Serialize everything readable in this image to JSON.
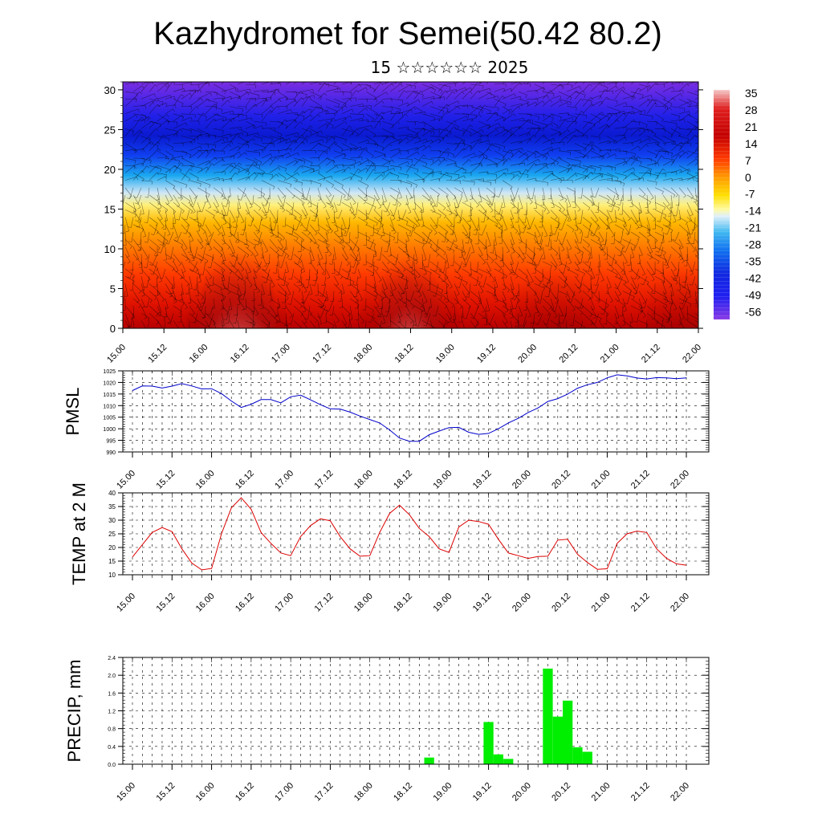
{
  "header": {
    "title": "Kazhydromet for Semei(50.42 80.2)",
    "subtitle": "15 ☆☆☆☆☆☆ 2025"
  },
  "colors": {
    "pmsl_line": "#0000cc",
    "temp_line": "#dd0000",
    "precip_bar": "#00ee00"
  },
  "chart_data": [
    {
      "id": "cross-section",
      "type": "heatmap",
      "title": "",
      "xlabel": "",
      "ylabel": "",
      "x_ticks": [
        "15.00",
        "15.12",
        "16.00",
        "16.12",
        "17.00",
        "17.12",
        "18.00",
        "18.12",
        "19.00",
        "19.12",
        "20.00",
        "20.12",
        "21.00",
        "21.12",
        "22.00"
      ],
      "y_ticks": [
        0,
        5,
        10,
        15,
        20,
        25,
        30
      ],
      "ylim": [
        0,
        31
      ],
      "colorbar_ticks": [
        35,
        28,
        21,
        14,
        7,
        0,
        -7,
        -14,
        -21,
        -28,
        -35,
        -42,
        -49,
        -56
      ],
      "colorbar_range": [
        -63,
        42
      ],
      "overlay": "wind barbs"
    },
    {
      "id": "pmsl",
      "type": "line",
      "ylabel": "PMSL",
      "x_ticks": [
        "15.00",
        "15.12",
        "16.00",
        "16.12",
        "17.00",
        "17.12",
        "18.00",
        "18.12",
        "19.00",
        "19.12",
        "20.00",
        "20.12",
        "21.00",
        "21.12",
        "22.00"
      ],
      "y_ticks": [
        990,
        995,
        1000,
        1005,
        1010,
        1015,
        1020,
        1025
      ],
      "ylim": [
        990,
        1025
      ],
      "step_hours": 3,
      "values": [
        1016.5,
        1018.5,
        1018.4,
        1017.6,
        1018.4,
        1019.5,
        1018.5,
        1017.2,
        1017.3,
        1015.2,
        1012.0,
        1009.2,
        1010.6,
        1012.6,
        1012.6,
        1011.2,
        1013.8,
        1014.5,
        1012.5,
        1010.4,
        1008.6,
        1008.5,
        1007.2,
        1005.5,
        1004.0,
        1002.5,
        999.5,
        996.0,
        994.6,
        994.6,
        997.4,
        999.0,
        1000.5,
        1000.6,
        998.5,
        997.6,
        998.0,
        1000.0,
        1002.5,
        1004.5,
        1007.0,
        1009.0,
        1011.8,
        1013.0,
        1015.0,
        1017.5,
        1019.0,
        1020.0,
        1022.0,
        1023.3,
        1022.8,
        1021.9,
        1021.5,
        1022.1,
        1022.0,
        1021.6,
        1022.0
      ]
    },
    {
      "id": "temp2m",
      "type": "line",
      "ylabel": "TEMP at 2 M",
      "x_ticks": [
        "15.00",
        "15.12",
        "16.00",
        "16.12",
        "17.00",
        "17.12",
        "18.00",
        "18.12",
        "19.00",
        "19.12",
        "20.00",
        "20.12",
        "21.00",
        "21.12",
        "22.00"
      ],
      "y_ticks": [
        10,
        15,
        20,
        25,
        30,
        35,
        40
      ],
      "ylim": [
        10,
        40
      ],
      "step_hours": 3,
      "values": [
        16.5,
        21.0,
        25.5,
        27.3,
        25.8,
        19.5,
        14.3,
        11.8,
        12.3,
        25.0,
        34.5,
        38.2,
        34.0,
        25.5,
        21.5,
        18.0,
        17.0,
        24.0,
        28.0,
        30.5,
        29.8,
        24.0,
        19.5,
        16.8,
        17.0,
        25.5,
        32.5,
        35.5,
        32.0,
        27.0,
        24.0,
        19.5,
        18.2,
        27.5,
        30.0,
        29.5,
        28.5,
        23.0,
        18.0,
        17.0,
        16.0,
        16.7,
        16.8,
        22.7,
        23.0,
        17.5,
        14.5,
        12.0,
        12.2,
        21.5,
        25.0,
        26.0,
        25.5,
        19.5,
        16.0,
        14.0,
        13.5
      ]
    },
    {
      "id": "precip",
      "type": "bar",
      "ylabel": "PRECIP, mm",
      "x_ticks": [
        "15.00",
        "15.12",
        "16.00",
        "16.12",
        "17.00",
        "17.12",
        "18.00",
        "18.12",
        "19.00",
        "19.12",
        "20.00",
        "20.12",
        "21.00",
        "21.12",
        "22.00"
      ],
      "y_ticks": [
        0.0,
        0.4,
        0.8,
        1.2,
        1.6,
        2.0,
        2.4
      ],
      "ylim": [
        0,
        2.4
      ],
      "step_hours": 3,
      "values": [
        0,
        0,
        0,
        0,
        0,
        0,
        0,
        0,
        0,
        0,
        0,
        0,
        0,
        0,
        0,
        0,
        0,
        0,
        0,
        0,
        0,
        0,
        0,
        0,
        0,
        0,
        0,
        0,
        0,
        0,
        0.15,
        0,
        0,
        0,
        0,
        0,
        0.95,
        0.22,
        0.12,
        0,
        0,
        0,
        2.15,
        1.07,
        1.43,
        0.38,
        0.28,
        0,
        0,
        0,
        0,
        0,
        0,
        0,
        0,
        0
      ]
    }
  ]
}
